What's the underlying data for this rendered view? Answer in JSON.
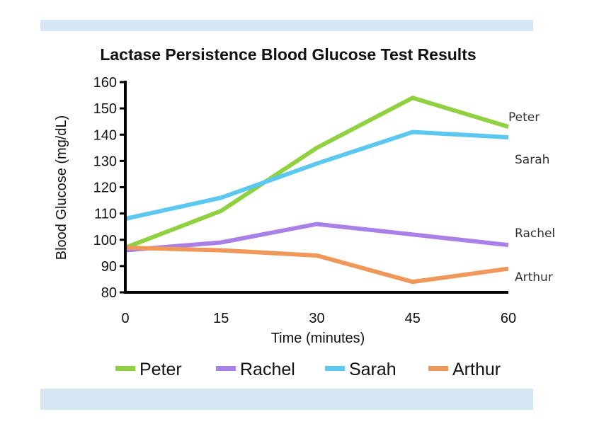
{
  "chart_data": {
    "type": "line",
    "title": "Lactase Persistence Blood Glucose Test Results",
    "xlabel": "Time (minutes)",
    "ylabel": "Blood Glucose (mg/dL)",
    "x": [
      0,
      15,
      30,
      45,
      60
    ],
    "ylim": [
      80,
      160
    ],
    "yticks": [
      80,
      90,
      100,
      110,
      120,
      130,
      140,
      150,
      160
    ],
    "series": [
      {
        "name": "Peter",
        "color": "#8fd141",
        "values": [
          97,
          111,
          135,
          154,
          143
        ]
      },
      {
        "name": "Rachel",
        "color": "#a97fe8",
        "values": [
          96,
          99,
          106,
          102,
          98
        ]
      },
      {
        "name": "Sarah",
        "color": "#5cc8f0",
        "values": [
          108,
          116,
          129,
          141,
          139
        ]
      },
      {
        "name": "Arthur",
        "color": "#f0975a",
        "values": [
          97,
          96,
          94,
          84,
          89
        ]
      }
    ],
    "end_labels": [
      "Peter",
      "Sarah",
      "Rachel",
      "Arthur"
    ],
    "legend": [
      "Peter",
      "Rachel",
      "Sarah",
      "Arthur"
    ],
    "legend_position": "bottom"
  }
}
